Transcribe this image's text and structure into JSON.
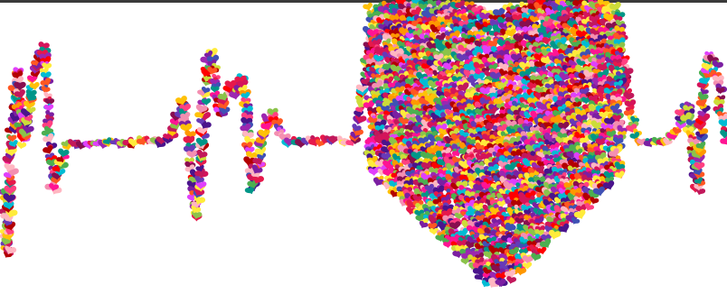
{
  "image": {
    "subject": "heartbeat-pulse-line-made-of-small-hearts",
    "background": "#ffffff",
    "top_rule_color": "#3a3a3a",
    "heart_palette": [
      "#e6194b",
      "#d4145a",
      "#ff1493",
      "#c2185b",
      "#ff4081",
      "#b30000",
      "#ff0000",
      "#ff5722",
      "#ff9800",
      "#ffc107",
      "#ffeb3b",
      "#cddc39",
      "#8bc34a",
      "#4caf50",
      "#009688",
      "#00bcd4",
      "#3f51b5",
      "#673ab7",
      "#9c27b0",
      "#e040fb",
      "#880e4f",
      "#4a148c",
      "#ffb6c1",
      "#f48fb1",
      "#7b1fa2"
    ]
  }
}
